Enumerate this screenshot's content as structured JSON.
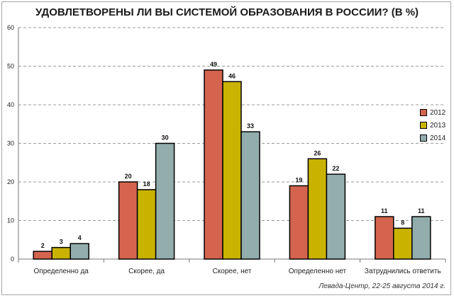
{
  "chart_data": {
    "type": "bar",
    "title": "УДОВЛЕТВОРЕНЫ ЛИ ВЫ СИСТЕМОЙ ОБРАЗОВАНИЯ В РОССИИ? (В %)",
    "categories": [
      "Определенно да",
      "Скорее, да",
      "Скорее, нет",
      "Определенно нет",
      "Затруднились ответить"
    ],
    "series": [
      {
        "name": "2012",
        "color": "#d4644e",
        "values": [
          2,
          20,
          49,
          19,
          11
        ]
      },
      {
        "name": "2013",
        "color": "#c9b300",
        "values": [
          3,
          18,
          46,
          26,
          8
        ]
      },
      {
        "name": "2014",
        "color": "#93adad",
        "values": [
          4,
          30,
          33,
          22,
          11
        ]
      }
    ],
    "ylim": [
      0,
      60
    ],
    "yticks": [
      0,
      10,
      20,
      30,
      40,
      50,
      60
    ],
    "grid": true,
    "legend_position": "right",
    "source": "Левада-Центр, 22-25 августа 2014 г."
  }
}
